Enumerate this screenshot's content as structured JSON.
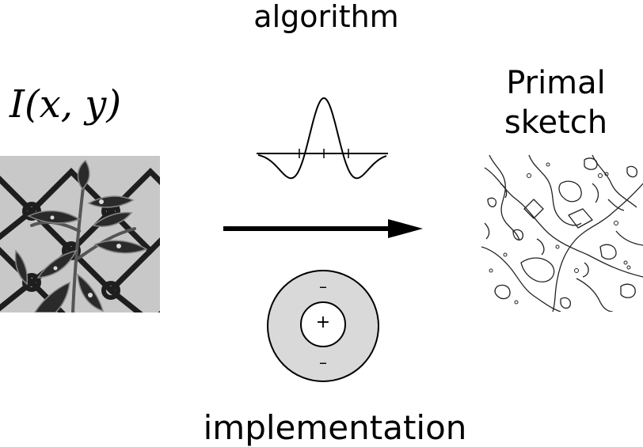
{
  "algorithm_label": "algorithm",
  "implementation_label": "implementation",
  "input_label": "I(x, y)",
  "output_label": "Primal sketch",
  "receptive_field": {
    "center_sign": "+",
    "surround_sign_top": "–",
    "surround_sign_bottom": "–"
  },
  "colors": {
    "ink": "#000000",
    "surround_fill": "#d9d9d9",
    "center_fill": "#ffffff"
  }
}
